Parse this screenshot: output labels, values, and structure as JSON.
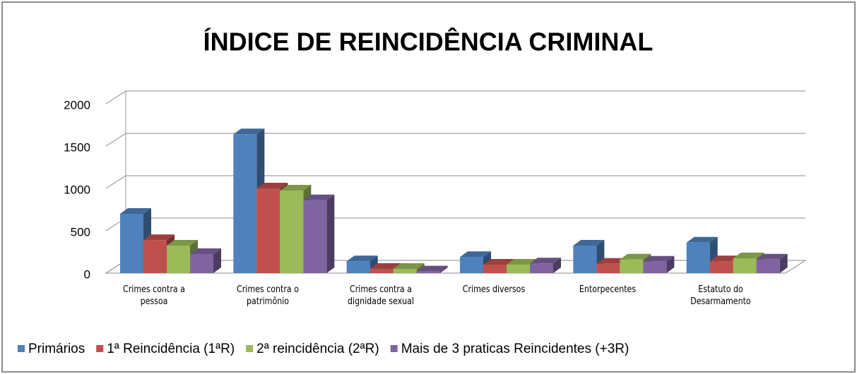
{
  "chart_data": {
    "type": "bar3d",
    "title": "ÍNDICE DE REINCIDÊNCIA CRIMINAL",
    "categories": [
      "Crimes contra a pessoa",
      "Crimes contra o patrimônio",
      "Crimes contra a dignidade sexual",
      "Crimes diversos",
      "Entorpecentes",
      "Estatuto do Desarmamento"
    ],
    "series": [
      {
        "name": "Primários",
        "color": "#4f81bd",
        "values": [
          700,
          1640,
          140,
          190,
          325,
          360
        ]
      },
      {
        "name": "1ª Reincidência (1ªR)",
        "color": "#c0504d",
        "values": [
          390,
          1000,
          50,
          100,
          110,
          140
        ]
      },
      {
        "name": "2ª reincidência (2ªR)",
        "color": "#9bbb59",
        "values": [
          325,
          975,
          50,
          100,
          160,
          175
        ]
      },
      {
        "name": "Mais de 3 praticas Reincidentes (+3R)",
        "color": "#8064a2",
        "values": [
          225,
          860,
          20,
          115,
          135,
          160
        ]
      }
    ],
    "ylim": [
      0,
      2000
    ],
    "yticks": [
      0,
      500,
      1000,
      1500,
      2000
    ],
    "grid": true,
    "legend": "bottom"
  }
}
